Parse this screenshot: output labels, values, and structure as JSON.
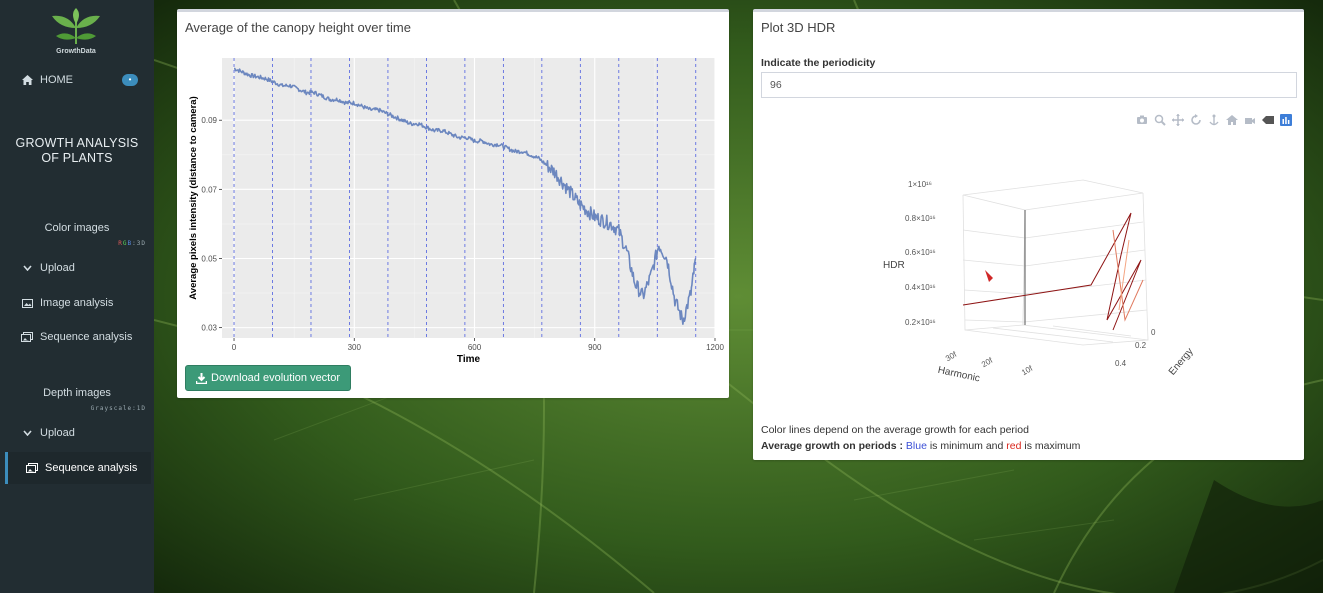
{
  "sidebar": {
    "logo_text": "GrowthData",
    "home_label": "HOME",
    "home_badge": "•",
    "app_title_line1": "GROWTH ANALYSIS",
    "app_title_line2": "OF PLANTS",
    "color_section": {
      "label": "Color images",
      "sub": "RGB:3D"
    },
    "color_items": [
      {
        "label": "Upload"
      },
      {
        "label": "Image analysis"
      },
      {
        "label": "Sequence analysis"
      }
    ],
    "depth_section": {
      "label": "Depth images",
      "sub": "Grayscale:1D"
    },
    "depth_items": [
      {
        "label": "Upload"
      },
      {
        "label": "Sequence analysis"
      }
    ]
  },
  "left_panel": {
    "title": "Average of the canopy height over time",
    "download_label": "Download evolution vector"
  },
  "right_panel": {
    "title": "Plot 3D HDR",
    "periodicity_label": "Indicate the periodicity",
    "periodicity_value": "96",
    "note1": "Color lines depend on the average growth for each period",
    "note2_prefix": "Average growth on periods : ",
    "note2_blue": "Blue",
    "note2_mid": " is minimum and ",
    "note2_red": "red",
    "note2_suffix": " is maximum",
    "plot3d": {
      "z_label": "HDR",
      "x_label": "Harmonic",
      "y_label": "Energy",
      "z_ticks": [
        "1×10¹⁶",
        "0.8×10¹⁶",
        "0.6×10¹⁶",
        "0.4×10¹⁶",
        "0.2×10¹⁶"
      ],
      "x_ticks": [
        "30f",
        "20f",
        "10f"
      ],
      "y_ticks": [
        "0",
        "0.2",
        "0.4"
      ]
    },
    "modebar_icons": [
      "camera-icon",
      "zoom-icon",
      "pan-icon",
      "orbit-icon",
      "turntable-icon",
      "home-icon",
      "reset-camera-icon",
      "hover-icon",
      "plotly-logo-icon"
    ]
  },
  "chart_data": {
    "type": "line",
    "title": "Average of the canopy height over time",
    "xlabel": "Time",
    "ylabel": "Average pixels intensity (distance to camera)",
    "xlim": [
      -30,
      1200
    ],
    "ylim": [
      0.027,
      0.108
    ],
    "xticks": [
      0,
      300,
      600,
      900,
      1200
    ],
    "xtick_labels": [
      "0",
      "300",
      "600",
      "900",
      "1200"
    ],
    "yticks": [
      0.03,
      0.05,
      0.07,
      0.09
    ],
    "ytick_labels": [
      "0.03",
      "0.05",
      "0.07",
      "0.09"
    ],
    "period_lines": [
      0,
      96,
      192,
      288,
      384,
      480,
      576,
      672,
      768,
      864,
      960,
      1056,
      1152
    ],
    "series": [
      {
        "color": "#6c87bf",
        "x": [
          0,
          20,
          40,
          60,
          80,
          100,
          120,
          140,
          160,
          180,
          200,
          220,
          240,
          260,
          280,
          300,
          320,
          340,
          360,
          380,
          400,
          420,
          440,
          460,
          480,
          500,
          520,
          540,
          560,
          580,
          600,
          620,
          640,
          660,
          680,
          700,
          720,
          740,
          760,
          780,
          800,
          820,
          840,
          860,
          880,
          900,
          920,
          940,
          960,
          980,
          1000,
          1020,
          1040,
          1060,
          1080,
          1100,
          1120,
          1140,
          1152
        ],
        "y": [
          0.105,
          0.104,
          0.103,
          0.1025,
          0.102,
          0.101,
          0.1,
          0.1,
          0.099,
          0.098,
          0.098,
          0.097,
          0.096,
          0.096,
          0.095,
          0.095,
          0.094,
          0.093,
          0.093,
          0.092,
          0.091,
          0.09,
          0.089,
          0.089,
          0.088,
          0.087,
          0.087,
          0.086,
          0.085,
          0.085,
          0.084,
          0.084,
          0.083,
          0.083,
          0.082,
          0.081,
          0.081,
          0.08,
          0.079,
          0.077,
          0.075,
          0.072,
          0.069,
          0.066,
          0.064,
          0.062,
          0.061,
          0.06,
          0.058,
          0.052,
          0.043,
          0.039,
          0.045,
          0.054,
          0.05,
          0.038,
          0.032,
          0.04,
          0.05
        ]
      }
    ]
  }
}
